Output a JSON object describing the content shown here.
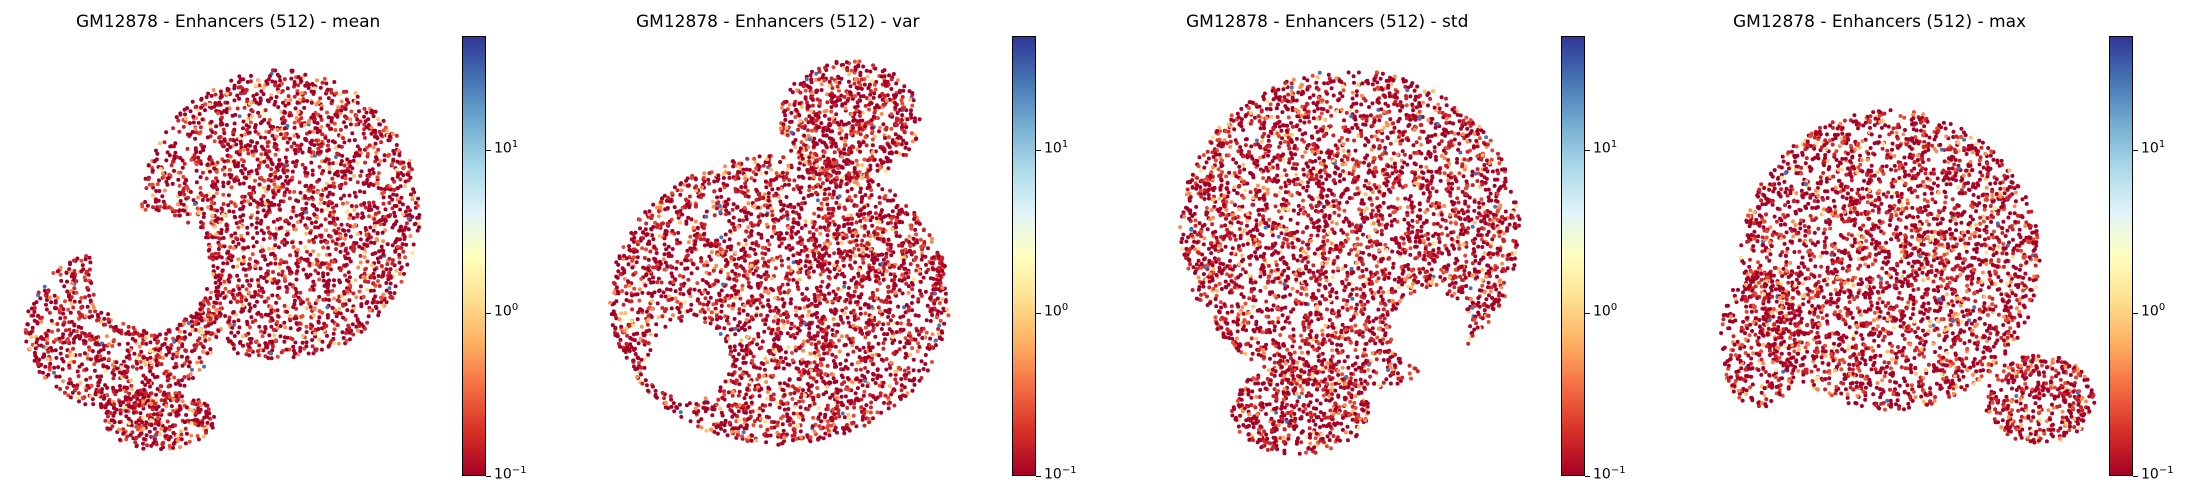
{
  "colors": {
    "cmap": "RdYlBu",
    "low": "#a50026",
    "mid": "#ffffbf",
    "high": "#313695"
  },
  "charts": [
    {
      "title": "GM12878 - Enhancers (512) - mean"
    },
    {
      "title": "GM12878 - Enhancers (512) - var"
    },
    {
      "title": "GM12878 - Enhancers (512) - std"
    },
    {
      "title": "GM12878 - Enhancers (512) - max"
    }
  ],
  "chart_data": [
    {
      "type": "scatter",
      "title": "GM12878 - Enhancers (512) - mean",
      "colorbar": {
        "scale": "log",
        "range": [
          0.1,
          50
        ],
        "ticks": [
          {
            "base": "10",
            "exp": "1",
            "value": 10
          },
          {
            "base": "10",
            "exp": "0",
            "value": 1
          },
          {
            "base": "10",
            "exp": "−1",
            "value": 0.1
          }
        ]
      },
      "axes": "off",
      "grid": false
    },
    {
      "type": "scatter",
      "title": "GM12878 - Enhancers (512) - var",
      "colorbar": {
        "scale": "log",
        "range": [
          0.1,
          50
        ],
        "ticks": [
          {
            "base": "10",
            "exp": "1",
            "value": 10
          },
          {
            "base": "10",
            "exp": "0",
            "value": 1
          },
          {
            "base": "10",
            "exp": "−1",
            "value": 0.1
          }
        ]
      },
      "axes": "off",
      "grid": false
    },
    {
      "type": "scatter",
      "title": "GM12878 - Enhancers (512) - std",
      "colorbar": {
        "scale": "log",
        "range": [
          0.1,
          50
        ],
        "ticks": [
          {
            "base": "10",
            "exp": "1",
            "value": 10
          },
          {
            "base": "10",
            "exp": "0",
            "value": 1
          },
          {
            "base": "10",
            "exp": "−1",
            "value": 0.1
          }
        ]
      },
      "axes": "off",
      "grid": false
    },
    {
      "type": "scatter",
      "title": "GM12878 - Enhancers (512) - max",
      "colorbar": {
        "scale": "log",
        "range": [
          0.1,
          50
        ],
        "ticks": [
          {
            "base": "10",
            "exp": "1",
            "value": 10
          },
          {
            "base": "10",
            "exp": "0",
            "value": 1
          },
          {
            "base": "10",
            "exp": "−1",
            "value": 0.1
          }
        ]
      },
      "axes": "off",
      "grid": false
    }
  ]
}
